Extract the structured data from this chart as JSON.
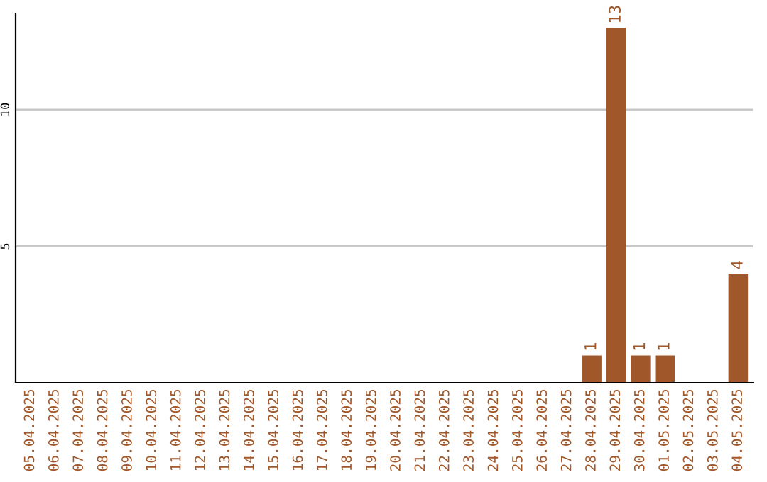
{
  "chart_data": {
    "type": "bar",
    "categories": [
      "05.04.2025",
      "06.04.2025",
      "07.04.2025",
      "08.04.2025",
      "09.04.2025",
      "10.04.2025",
      "11.04.2025",
      "12.04.2025",
      "13.04.2025",
      "14.04.2025",
      "15.04.2025",
      "16.04.2025",
      "17.04.2025",
      "18.04.2025",
      "19.04.2025",
      "20.04.2025",
      "21.04.2025",
      "22.04.2025",
      "23.04.2025",
      "24.04.2025",
      "25.04.2025",
      "26.04.2025",
      "27.04.2025",
      "28.04.2025",
      "29.04.2025",
      "30.04.2025",
      "01.05.2025",
      "02.05.2025",
      "03.05.2025",
      "04.05.2025"
    ],
    "values": [
      0,
      0,
      0,
      0,
      0,
      0,
      0,
      0,
      0,
      0,
      0,
      0,
      0,
      0,
      0,
      0,
      0,
      0,
      0,
      0,
      0,
      0,
      0,
      1,
      13,
      1,
      1,
      0,
      0,
      4
    ],
    "value_labels": [
      null,
      null,
      null,
      null,
      null,
      null,
      null,
      null,
      null,
      null,
      null,
      null,
      null,
      null,
      null,
      null,
      null,
      null,
      null,
      null,
      null,
      null,
      null,
      "1",
      "13",
      "1",
      "1",
      null,
      null,
      "4"
    ],
    "color": "#a0582a",
    "ylim": [
      0,
      13.5
    ],
    "yticks": [
      5,
      10
    ],
    "grid": "y"
  }
}
